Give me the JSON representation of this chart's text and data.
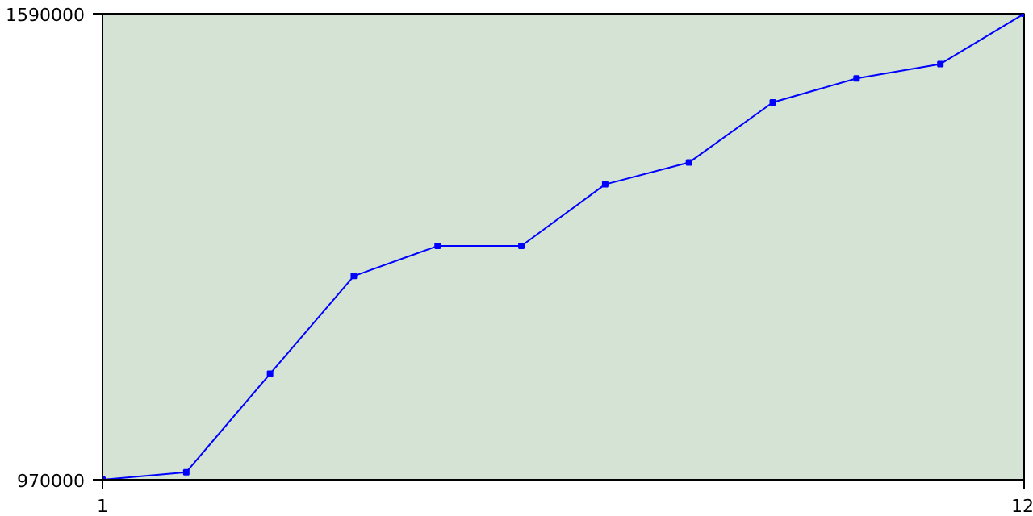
{
  "chart_data": {
    "type": "line",
    "x": [
      1,
      2,
      3,
      4,
      5,
      6,
      7,
      8,
      9,
      10,
      11,
      12
    ],
    "series": [
      {
        "color": "#0000ff",
        "values": [
          970000,
          980000,
          1111000,
          1241000,
          1281000,
          1281000,
          1363000,
          1392000,
          1472000,
          1504000,
          1523000,
          1590000
        ]
      }
    ],
    "xlim": [
      1,
      12
    ],
    "ylim": [
      970000,
      1590000
    ],
    "xticks": [
      1,
      12
    ],
    "yticks": [
      970000,
      1590000
    ],
    "marker": "square",
    "line_style": "solid"
  }
}
